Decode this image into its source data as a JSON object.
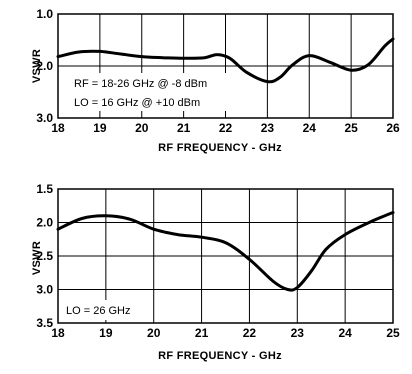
{
  "chart_data": [
    {
      "type": "line",
      "xlabel": "RF FREQUENCY - GHz",
      "ylabel": "VSWR",
      "xlim": [
        18,
        26
      ],
      "ylim": [
        1.0,
        3.0
      ],
      "y_inverted": true,
      "x_ticks": [
        "18",
        "19",
        "20",
        "21",
        "22",
        "23",
        "24",
        "25",
        "26"
      ],
      "y_ticks": [
        "1.0",
        "2.0",
        "3.0"
      ],
      "grid": true,
      "annotations": [
        "RF = 18-26 GHz @ -8 dBm",
        "LO = 16 GHz @ +10 dBm"
      ],
      "series": [
        {
          "x": [
            18,
            18.5,
            19,
            19.5,
            20,
            20.5,
            21,
            21.5,
            21.8,
            22.1,
            22.5,
            23,
            23.3,
            23.6,
            24,
            24.5,
            25,
            25.4,
            25.8,
            26
          ],
          "y": [
            1.82,
            1.73,
            1.72,
            1.77,
            1.82,
            1.84,
            1.85,
            1.84,
            1.78,
            1.85,
            2.12,
            2.3,
            2.22,
            1.98,
            1.8,
            1.93,
            2.08,
            1.98,
            1.62,
            1.48
          ]
        }
      ]
    },
    {
      "type": "line",
      "xlabel": "RF FREQUENCY - GHz",
      "ylabel": "VSWR",
      "xlim": [
        18,
        25
      ],
      "ylim": [
        1.5,
        3.5
      ],
      "y_inverted": true,
      "x_ticks": [
        "18",
        "19",
        "20",
        "21",
        "22",
        "23",
        "24",
        "25"
      ],
      "y_ticks": [
        "1.5",
        "2.0",
        "2.5",
        "3.0",
        "3.5"
      ],
      "grid": true,
      "annotations": [
        "LO = 26 GHz"
      ],
      "series": [
        {
          "x": [
            18,
            18.5,
            19,
            19.5,
            20,
            20.5,
            21,
            21.5,
            22,
            22.5,
            22.8,
            23,
            23.3,
            23.6,
            24,
            24.5,
            25
          ],
          "y": [
            2.1,
            1.94,
            1.9,
            1.95,
            2.1,
            2.18,
            2.22,
            2.3,
            2.55,
            2.88,
            3.0,
            2.97,
            2.72,
            2.4,
            2.18,
            2.0,
            1.85
          ]
        }
      ]
    }
  ]
}
